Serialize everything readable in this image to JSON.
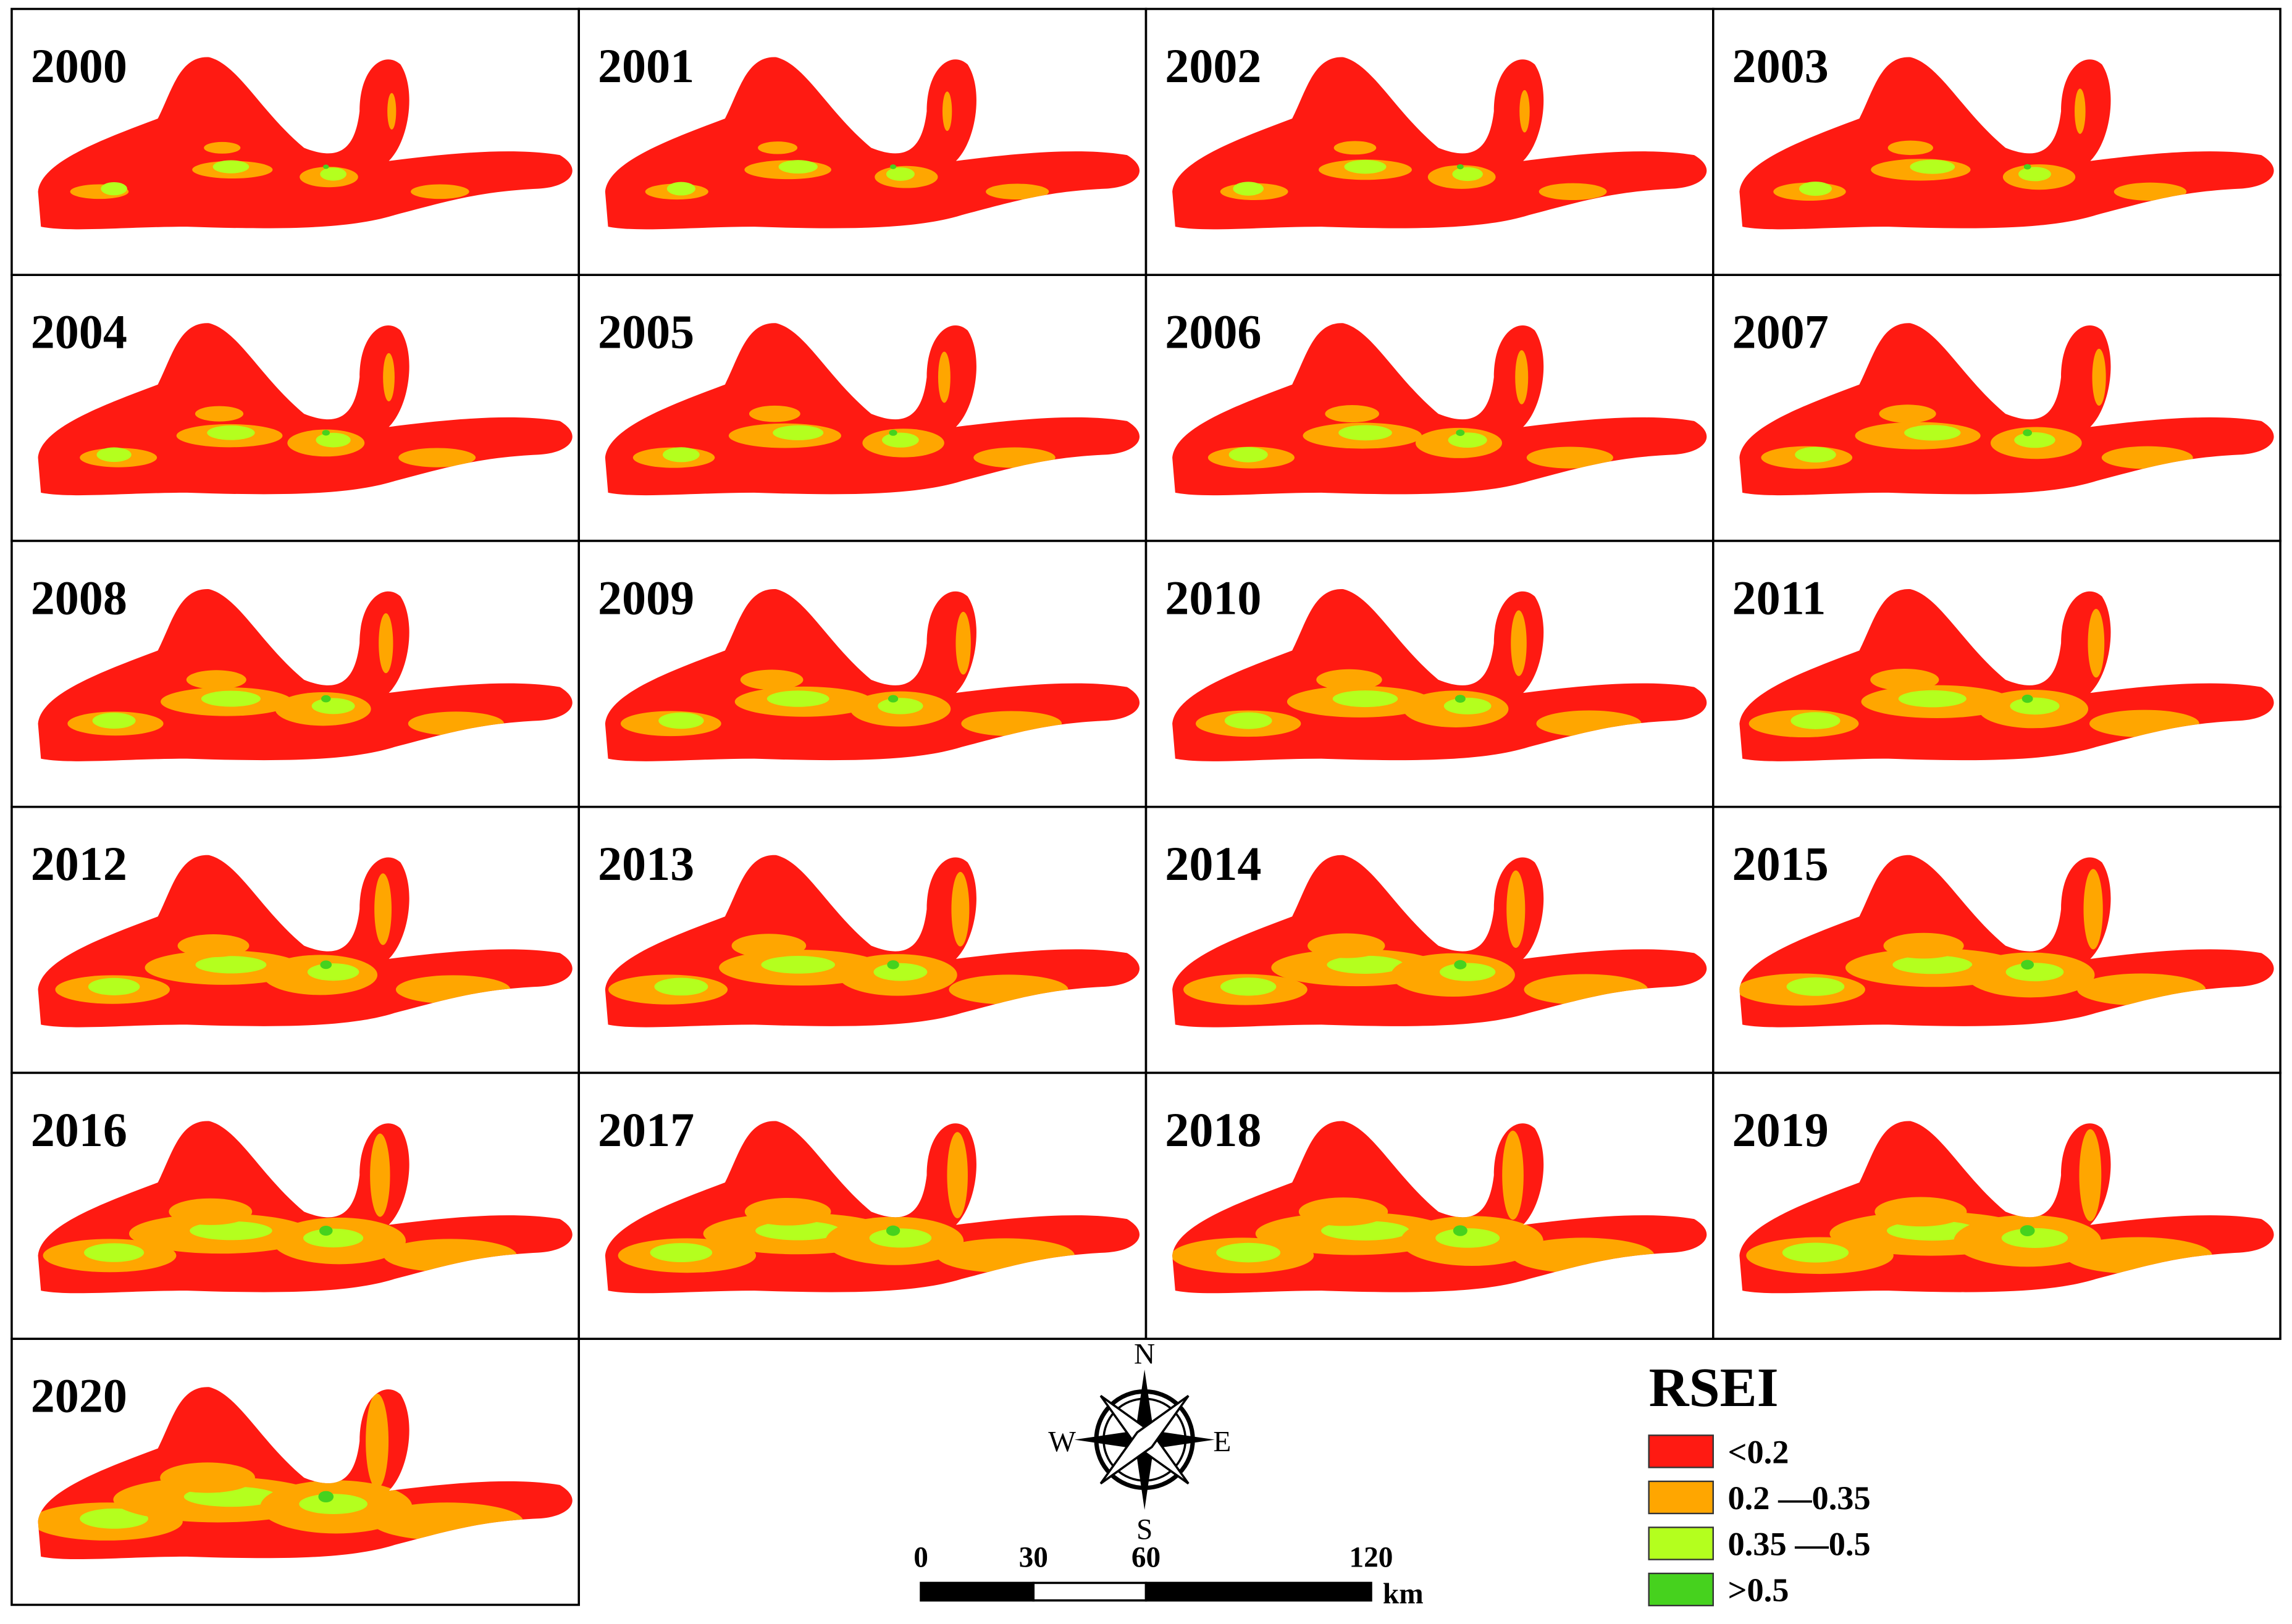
{
  "panels": [
    "2000",
    "2001",
    "2002",
    "2003",
    "2004",
    "2005",
    "2006",
    "2007",
    "2008",
    "2009",
    "2010",
    "2011",
    "2012",
    "2013",
    "2014",
    "2015",
    "2016",
    "2017",
    "2018",
    "2019",
    "2020"
  ],
  "compass": {
    "north": "N",
    "south": "S",
    "east": "E",
    "west": "W"
  },
  "scale_bar": {
    "ticks": [
      0,
      30,
      60,
      120
    ],
    "unit": "km"
  },
  "legend": {
    "title": "RSEI",
    "items": [
      {
        "label": "<0.2",
        "color": "#ff1a12"
      },
      {
        "label": "0.2 —0.35",
        "color": "#ffa600"
      },
      {
        "label": "0.35 —0.5",
        "color": "#b4ff1e"
      },
      {
        "label": ">0.5",
        "color": "#46d21e"
      }
    ]
  }
}
